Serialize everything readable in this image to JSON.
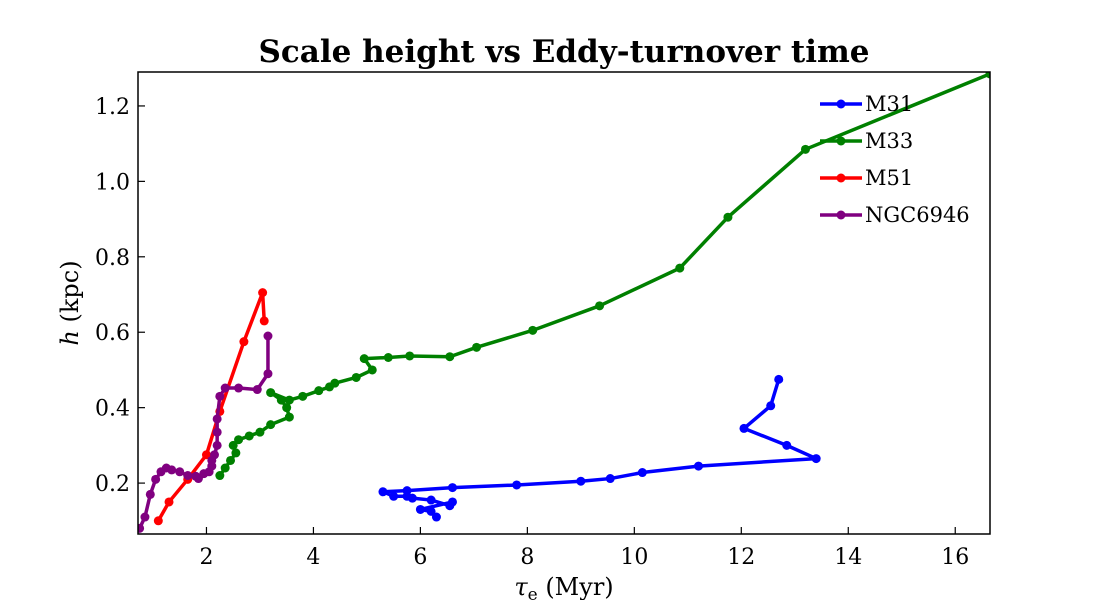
{
  "chart_data": {
    "type": "line",
    "title": "Scale height vs Eddy-turnover time",
    "xlabel": "τ",
    "xlabel_sub": "e",
    "xlabel_unit": " (Myr)",
    "ylabel": "h",
    "ylabel_unit": " (kpc)",
    "xlim": [
      0.72,
      16.65
    ],
    "ylim": [
      0.065,
      1.29
    ],
    "xticks": [
      2,
      4,
      6,
      8,
      10,
      12,
      14,
      16
    ],
    "xtick_labels": [
      "2",
      "4",
      "6",
      "8",
      "10",
      "12",
      "14",
      "16"
    ],
    "yticks": [
      0.2,
      0.4,
      0.6,
      0.8,
      1.0,
      1.2
    ],
    "ytick_labels": [
      "0.2",
      "0.4",
      "0.6",
      "0.8",
      "1.0",
      "1.2"
    ],
    "legend_position": "top-right",
    "series": [
      {
        "name": "M31",
        "color": "#0000ff",
        "points": [
          [
            6.3,
            0.11
          ],
          [
            6.2,
            0.125
          ],
          [
            6.0,
            0.13
          ],
          [
            6.6,
            0.15
          ],
          [
            6.55,
            0.14
          ],
          [
            6.2,
            0.155
          ],
          [
            5.85,
            0.16
          ],
          [
            5.75,
            0.165
          ],
          [
            5.5,
            0.165
          ],
          [
            5.3,
            0.177
          ],
          [
            5.75,
            0.18
          ],
          [
            6.6,
            0.188
          ],
          [
            7.8,
            0.195
          ],
          [
            9.0,
            0.205
          ],
          [
            9.55,
            0.212
          ],
          [
            10.15,
            0.228
          ],
          [
            11.2,
            0.245
          ],
          [
            13.4,
            0.265
          ],
          [
            12.85,
            0.3
          ],
          [
            12.05,
            0.345
          ],
          [
            12.55,
            0.405
          ],
          [
            12.7,
            0.475
          ]
        ]
      },
      {
        "name": "M33",
        "color": "#008000",
        "points": [
          [
            2.25,
            0.22
          ],
          [
            2.35,
            0.24
          ],
          [
            2.45,
            0.26
          ],
          [
            2.55,
            0.28
          ],
          [
            2.5,
            0.3
          ],
          [
            2.6,
            0.315
          ],
          [
            2.8,
            0.325
          ],
          [
            3.0,
            0.335
          ],
          [
            3.2,
            0.355
          ],
          [
            3.55,
            0.375
          ],
          [
            3.5,
            0.4
          ],
          [
            3.4,
            0.42
          ],
          [
            3.2,
            0.44
          ],
          [
            3.55,
            0.42
          ],
          [
            3.8,
            0.43
          ],
          [
            4.1,
            0.445
          ],
          [
            4.3,
            0.455
          ],
          [
            4.4,
            0.465
          ],
          [
            4.8,
            0.48
          ],
          [
            5.1,
            0.5
          ],
          [
            4.95,
            0.53
          ],
          [
            5.4,
            0.533
          ],
          [
            5.8,
            0.537
          ],
          [
            6.55,
            0.535
          ],
          [
            7.05,
            0.56
          ],
          [
            8.1,
            0.605
          ],
          [
            9.35,
            0.67
          ],
          [
            10.85,
            0.77
          ],
          [
            11.75,
            0.905
          ],
          [
            13.2,
            1.085
          ],
          [
            16.65,
            1.285
          ]
        ]
      },
      {
        "name": "M51",
        "color": "#ff0000",
        "points": [
          [
            1.1,
            0.1
          ],
          [
            1.3,
            0.15
          ],
          [
            1.65,
            0.21
          ],
          [
            2.0,
            0.275
          ],
          [
            2.25,
            0.39
          ],
          [
            2.7,
            0.575
          ],
          [
            3.05,
            0.705
          ],
          [
            3.08,
            0.63
          ]
        ]
      },
      {
        "name": "NGC6946",
        "color": "#800080",
        "points": [
          [
            0.75,
            0.08
          ],
          [
            0.85,
            0.11
          ],
          [
            0.95,
            0.17
          ],
          [
            1.05,
            0.21
          ],
          [
            1.15,
            0.23
          ],
          [
            1.25,
            0.24
          ],
          [
            1.35,
            0.235
          ],
          [
            1.5,
            0.23
          ],
          [
            1.65,
            0.22
          ],
          [
            1.8,
            0.218
          ],
          [
            1.85,
            0.212
          ],
          [
            1.95,
            0.225
          ],
          [
            2.05,
            0.23
          ],
          [
            2.1,
            0.245
          ],
          [
            2.1,
            0.26
          ],
          [
            2.15,
            0.275
          ],
          [
            2.2,
            0.3
          ],
          [
            2.2,
            0.335
          ],
          [
            2.2,
            0.37
          ],
          [
            2.25,
            0.43
          ],
          [
            2.35,
            0.452
          ],
          [
            2.6,
            0.452
          ],
          [
            2.95,
            0.448
          ],
          [
            3.15,
            0.49
          ],
          [
            3.15,
            0.59
          ]
        ]
      }
    ]
  }
}
